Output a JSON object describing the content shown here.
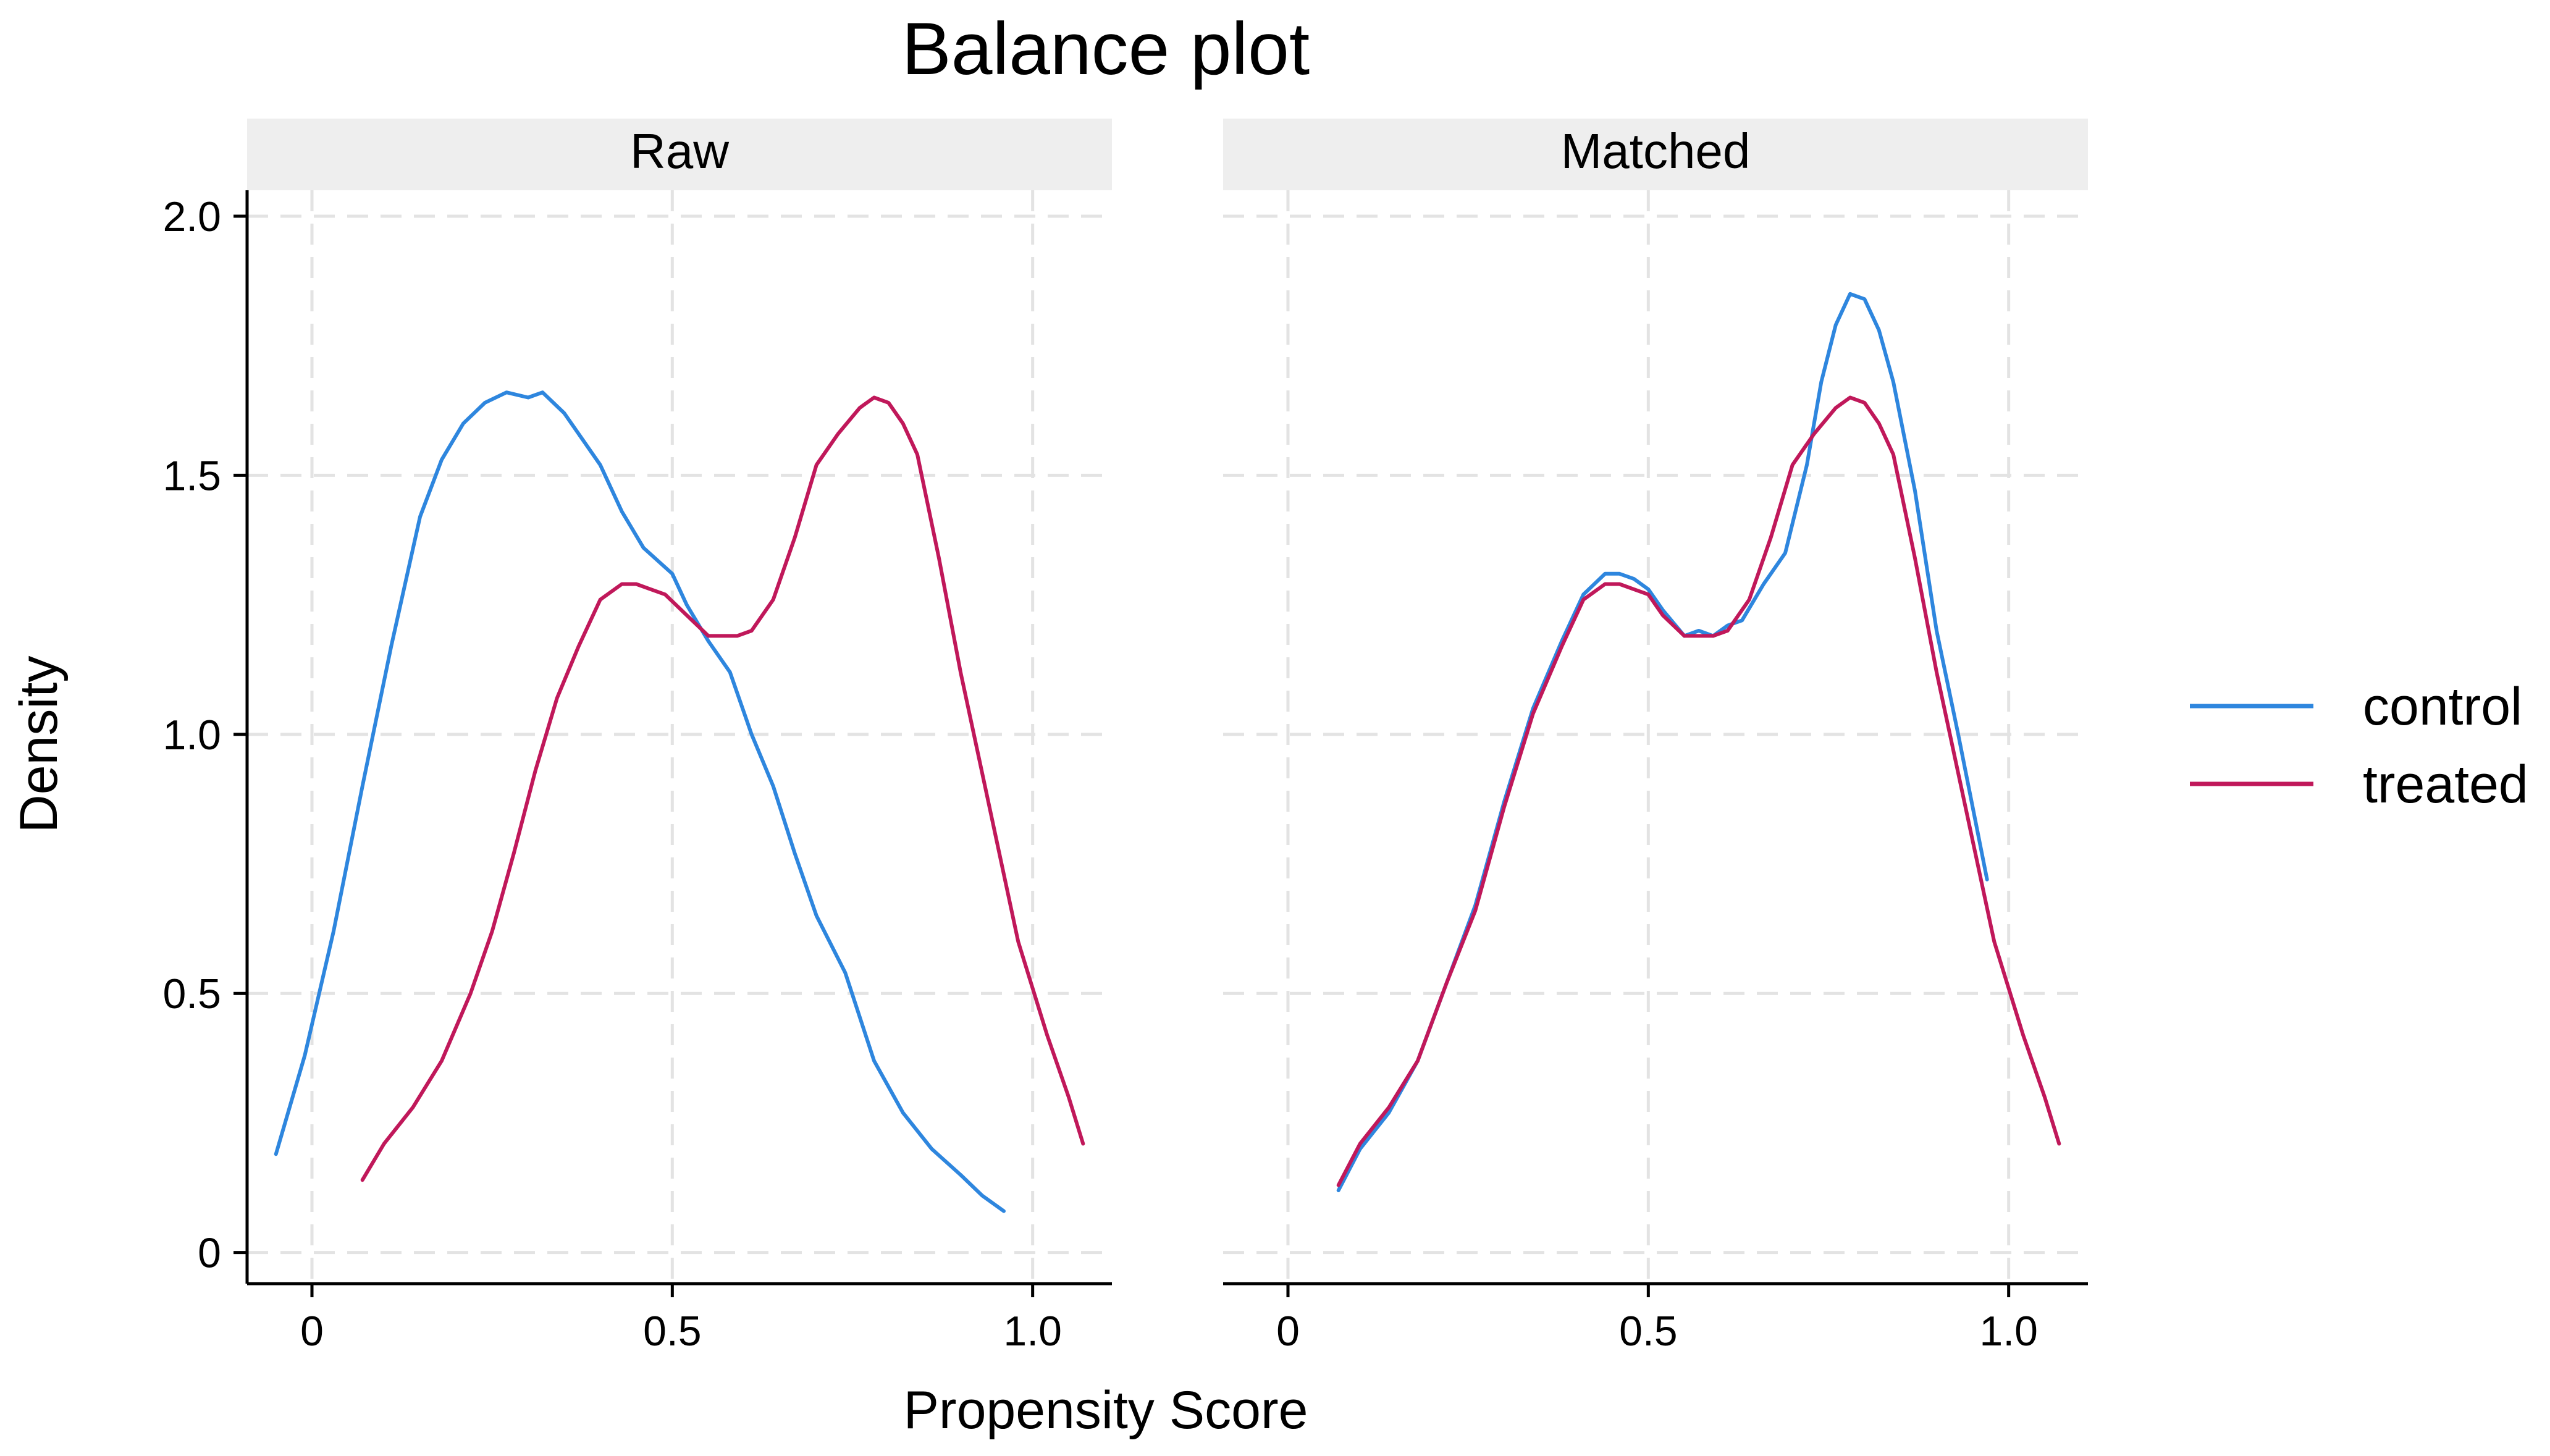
{
  "chart_data": {
    "type": "line",
    "title": "Balance plot",
    "xlabel": "Propensity Score",
    "ylabel": "Density",
    "xlim": [
      -0.09,
      1.11
    ],
    "ylim": [
      -0.06,
      2.05
    ],
    "x_ticks": [
      0,
      0.5,
      1.0
    ],
    "x_tick_labels": [
      "0",
      "0.5",
      "1.0"
    ],
    "y_ticks": [
      0,
      0.5,
      1.0,
      1.5,
      2.0
    ],
    "y_tick_labels": [
      "0",
      "0.5",
      "1.0",
      "1.5",
      "2.0"
    ],
    "grid": true,
    "legend_position": "right",
    "legend": [
      {
        "name": "control",
        "color": "#2e86de"
      },
      {
        "name": "treated",
        "color": "#c0185a"
      }
    ],
    "panels": [
      {
        "label": "Raw",
        "series": [
          {
            "name": "control",
            "color": "#2e86de",
            "x": [
              -0.05,
              -0.01,
              0.03,
              0.07,
              0.11,
              0.15,
              0.18,
              0.21,
              0.24,
              0.27,
              0.3,
              0.32,
              0.35,
              0.37,
              0.4,
              0.43,
              0.46,
              0.5,
              0.52,
              0.55,
              0.58,
              0.61,
              0.64,
              0.67,
              0.7,
              0.74,
              0.78,
              0.82,
              0.86,
              0.9,
              0.93,
              0.96
            ],
            "y": [
              0.19,
              0.38,
              0.62,
              0.9,
              1.17,
              1.42,
              1.53,
              1.6,
              1.64,
              1.66,
              1.65,
              1.66,
              1.62,
              1.58,
              1.52,
              1.43,
              1.36,
              1.31,
              1.25,
              1.18,
              1.12,
              1.0,
              0.9,
              0.77,
              0.65,
              0.54,
              0.37,
              0.27,
              0.2,
              0.15,
              0.11,
              0.08
            ]
          },
          {
            "name": "treated",
            "color": "#c0185a",
            "x": [
              0.07,
              0.1,
              0.14,
              0.18,
              0.22,
              0.25,
              0.28,
              0.31,
              0.34,
              0.37,
              0.4,
              0.43,
              0.45,
              0.47,
              0.49,
              0.52,
              0.55,
              0.57,
              0.59,
              0.61,
              0.64,
              0.67,
              0.7,
              0.73,
              0.76,
              0.78,
              0.8,
              0.82,
              0.84,
              0.87,
              0.9,
              0.94,
              0.98,
              1.02,
              1.05,
              1.07
            ],
            "y": [
              0.14,
              0.21,
              0.28,
              0.37,
              0.5,
              0.62,
              0.77,
              0.93,
              1.07,
              1.17,
              1.26,
              1.29,
              1.29,
              1.28,
              1.27,
              1.23,
              1.19,
              1.19,
              1.19,
              1.2,
              1.26,
              1.38,
              1.52,
              1.58,
              1.63,
              1.65,
              1.64,
              1.6,
              1.54,
              1.34,
              1.12,
              0.86,
              0.6,
              0.42,
              0.3,
              0.21
            ]
          }
        ]
      },
      {
        "label": "Matched",
        "series": [
          {
            "name": "control",
            "color": "#2e86de",
            "x": [
              0.07,
              0.1,
              0.14,
              0.18,
              0.22,
              0.26,
              0.3,
              0.34,
              0.38,
              0.41,
              0.44,
              0.46,
              0.48,
              0.5,
              0.52,
              0.55,
              0.57,
              0.59,
              0.61,
              0.63,
              0.66,
              0.69,
              0.72,
              0.74,
              0.76,
              0.78,
              0.8,
              0.82,
              0.84,
              0.87,
              0.9,
              0.93,
              0.97
            ],
            "y": [
              0.12,
              0.2,
              0.27,
              0.37,
              0.52,
              0.67,
              0.87,
              1.05,
              1.18,
              1.27,
              1.31,
              1.31,
              1.3,
              1.28,
              1.24,
              1.19,
              1.2,
              1.19,
              1.21,
              1.22,
              1.29,
              1.35,
              1.52,
              1.68,
              1.79,
              1.85,
              1.84,
              1.78,
              1.68,
              1.47,
              1.2,
              1.0,
              0.72
            ]
          },
          {
            "name": "treated",
            "color": "#c0185a",
            "x": [
              0.07,
              0.1,
              0.14,
              0.18,
              0.22,
              0.26,
              0.3,
              0.34,
              0.38,
              0.41,
              0.44,
              0.46,
              0.48,
              0.5,
              0.52,
              0.55,
              0.57,
              0.59,
              0.61,
              0.64,
              0.67,
              0.7,
              0.73,
              0.76,
              0.78,
              0.8,
              0.82,
              0.84,
              0.87,
              0.9,
              0.94,
              0.98,
              1.02,
              1.05,
              1.07
            ],
            "y": [
              0.13,
              0.21,
              0.28,
              0.37,
              0.52,
              0.66,
              0.86,
              1.04,
              1.17,
              1.26,
              1.29,
              1.29,
              1.28,
              1.27,
              1.23,
              1.19,
              1.19,
              1.19,
              1.2,
              1.26,
              1.38,
              1.52,
              1.58,
              1.63,
              1.65,
              1.64,
              1.6,
              1.54,
              1.34,
              1.12,
              0.86,
              0.6,
              0.42,
              0.3,
              0.21
            ]
          }
        ]
      }
    ]
  }
}
